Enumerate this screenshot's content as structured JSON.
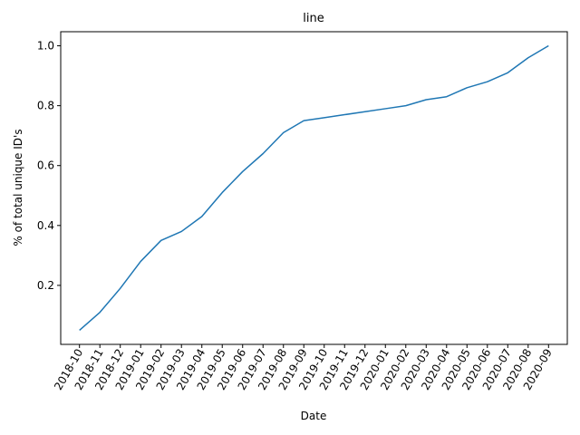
{
  "chart_data": {
    "type": "line",
    "title": "line",
    "xlabel": "Date",
    "ylabel": "% of total unique ID's",
    "x": [
      "2018-10",
      "2018-11",
      "2018-12",
      "2019-01",
      "2019-02",
      "2019-03",
      "2019-04",
      "2019-05",
      "2019-06",
      "2019-07",
      "2019-08",
      "2019-09",
      "2019-10",
      "2019-11",
      "2019-12",
      "2020-01",
      "2020-02",
      "2020-03",
      "2020-04",
      "2020-05",
      "2020-06",
      "2020-07",
      "2020-08",
      "2020-09"
    ],
    "series": [
      {
        "values": [
          0.05,
          0.11,
          0.19,
          0.28,
          0.35,
          0.38,
          0.43,
          0.51,
          0.58,
          0.64,
          0.71,
          0.75,
          0.76,
          0.77,
          0.78,
          0.79,
          0.8,
          0.82,
          0.83,
          0.86,
          0.88,
          0.91,
          0.96,
          1.0
        ],
        "color": "#1f77b4"
      }
    ],
    "yticks": [
      "0.2",
      "0.4",
      "0.6",
      "0.8",
      "1.0"
    ],
    "ylim": [
      0.003,
      1.047
    ],
    "grid": false,
    "legend": "none"
  }
}
